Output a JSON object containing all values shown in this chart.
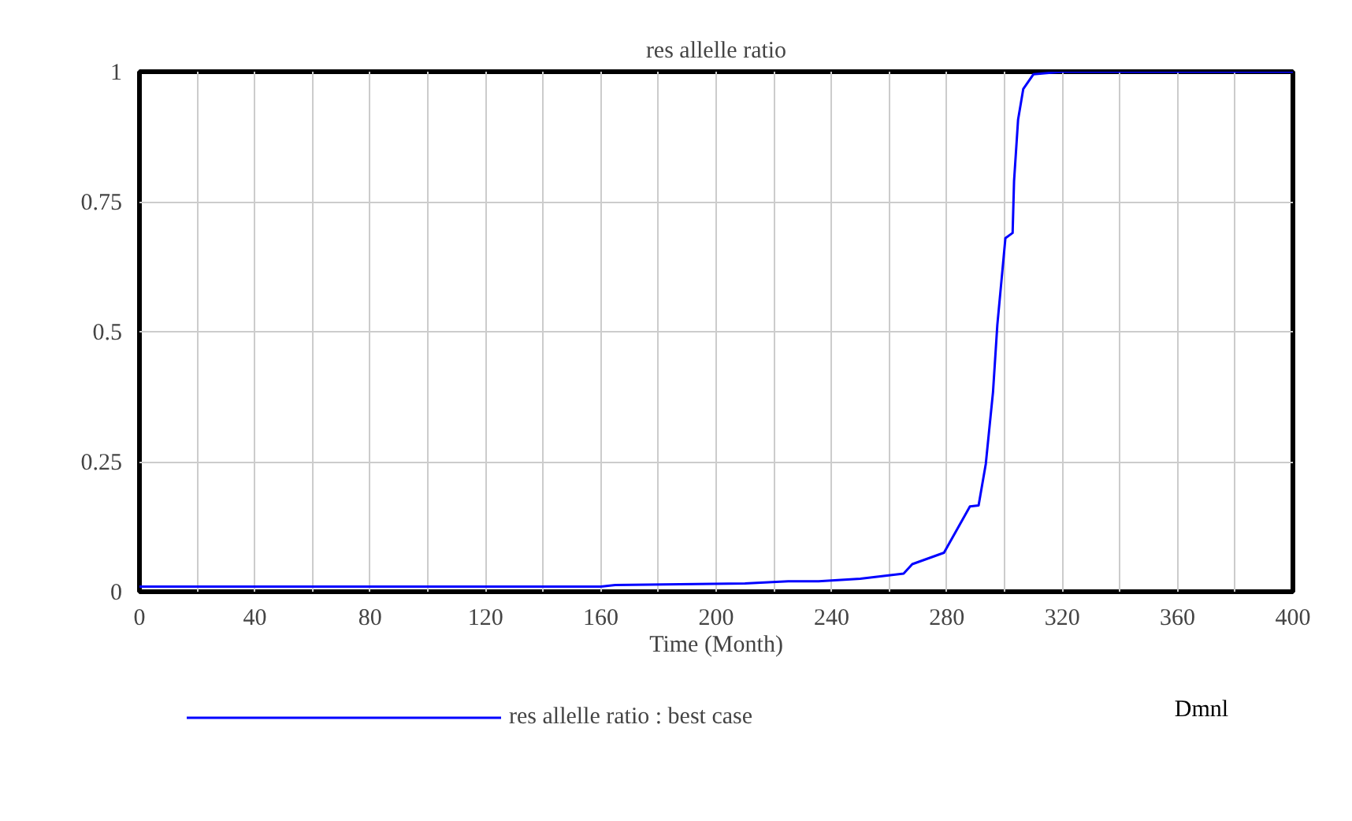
{
  "chart_data": {
    "type": "line",
    "title": "res allelle ratio",
    "xlabel": "Time (Month)",
    "x": [
      0,
      160,
      165,
      210,
      225,
      235.5,
      250,
      265,
      268,
      279,
      288,
      291,
      293.5,
      296,
      297.5,
      299.5,
      300.3,
      302.8,
      303.3,
      304.7,
      306.5,
      310,
      320,
      400
    ],
    "series": [
      {
        "name": "res allelle ratio : best case",
        "color": "#0000ff",
        "values": [
          0.01,
          0.01,
          0.013,
          0.016,
          0.02,
          0.02,
          0.025,
          0.035,
          0.053,
          0.075,
          0.164,
          0.166,
          0.246,
          0.384,
          0.513,
          0.632,
          0.68,
          0.69,
          0.79,
          0.908,
          0.967,
          0.995,
          1,
          1
        ]
      }
    ],
    "xlim": [
      0,
      400
    ],
    "ylim": [
      0,
      1
    ],
    "xticks": [
      0,
      {
        "value": 20,
        "label": null
      },
      40,
      {
        "value": 60,
        "label": null
      },
      80,
      {
        "value": 100,
        "label": null
      },
      120,
      {
        "value": 140,
        "label": null
      },
      160,
      {
        "value": 180,
        "label": null
      },
      200,
      {
        "value": 220,
        "label": null
      },
      240,
      {
        "value": 260,
        "label": null
      },
      280,
      {
        "value": 300,
        "label": null
      },
      320,
      {
        "value": 340,
        "label": null
      },
      360,
      {
        "value": 380,
        "label": null
      },
      400
    ],
    "yticks": [
      0,
      0.25,
      0.5,
      0.75,
      1
    ],
    "grid": true,
    "legend": "bottom",
    "annotations": [
      "Dmnl"
    ]
  }
}
